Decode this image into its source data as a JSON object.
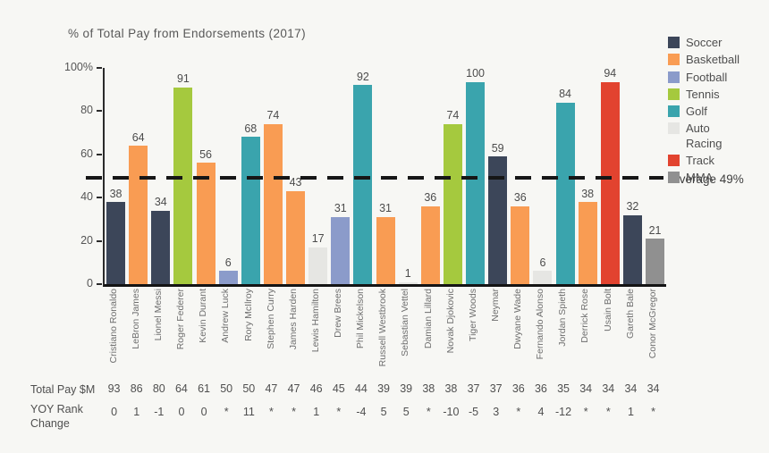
{
  "title": "% of Total Pay from Endorsements (2017)",
  "average_label": "Average 49%",
  "row_labels": {
    "total_pay": "Total Pay $M",
    "yoy": "YOY Rank\nChange"
  },
  "y_axis": {
    "ticks": [
      "100%",
      "80",
      "60",
      "40",
      "20",
      "0"
    ]
  },
  "legend": [
    {
      "label": "Soccer",
      "color": "#3c4659"
    },
    {
      "label": "Basketball",
      "color": "#f99c53"
    },
    {
      "label": "Football",
      "color": "#8b9bca"
    },
    {
      "label": "Tennis",
      "color": "#a5c93e"
    },
    {
      "label": "Golf",
      "color": "#3aa4ad"
    },
    {
      "label": "Auto\nRacing",
      "color": "#e6e6e3"
    },
    {
      "label": "Track",
      "color": "#e2432f"
    },
    {
      "label": "MMA",
      "color": "#909090"
    }
  ],
  "chart_data": {
    "type": "bar",
    "title": "% of Total Pay from Endorsements (2017)",
    "ylabel": "% of Total Pay from Endorsements",
    "ylim": [
      0,
      100
    ],
    "grid": false,
    "legend_position": "top-right",
    "average_line": 49,
    "categories": [
      "Cristiano Ronaldo",
      "LeBron James",
      "Lionel Messi",
      "Roger Federer",
      "Kevin Durant",
      "Andrew Luck",
      "Rory McIlroy",
      "Stephen Curry",
      "James Harden",
      "Lewis Hamilton",
      "Drew Brees",
      "Phil Mickelson",
      "Russell Westbrook",
      "Sebastian Vettel",
      "Damian Lillard",
      "Novak Djokovic",
      "Tiger Woods",
      "Neymar",
      "Dwyane Wade",
      "Fernando Alonso",
      "Jordan Spieth",
      "Derrick Rose",
      "Usain Bolt",
      "Gareth Bale",
      "Conor McGregor"
    ],
    "sports": [
      "Soccer",
      "Basketball",
      "Soccer",
      "Tennis",
      "Basketball",
      "Football",
      "Golf",
      "Basketball",
      "Basketball",
      "Auto Racing",
      "Football",
      "Golf",
      "Basketball",
      "Auto Racing",
      "Basketball",
      "Tennis",
      "Golf",
      "Soccer",
      "Basketball",
      "Auto Racing",
      "Golf",
      "Basketball",
      "Track",
      "Soccer",
      "MMA"
    ],
    "colors": {
      "Soccer": "#3c4659",
      "Basketball": "#f99c53",
      "Football": "#8b9bca",
      "Tennis": "#a5c93e",
      "Golf": "#3aa4ad",
      "Auto Racing": "#e6e6e3",
      "Track": "#e2432f",
      "MMA": "#909090"
    },
    "series": [
      {
        "name": "% of Total Pay from Endorsements (2017)",
        "values": [
          38,
          64,
          34,
          91,
          56,
          6,
          68,
          74,
          43,
          17,
          31,
          92,
          31,
          1,
          36,
          74,
          100,
          59,
          36,
          6,
          84,
          38,
          94,
          32,
          21
        ]
      }
    ],
    "rows": {
      "total_pay": [
        93,
        86,
        80,
        64,
        61,
        50,
        50,
        47,
        47,
        46,
        45,
        44,
        39,
        39,
        38,
        38,
        37,
        37,
        36,
        36,
        35,
        34,
        34,
        34,
        34
      ],
      "yoy_rank_change": [
        "0",
        "1",
        "-1",
        "0",
        "0",
        "*",
        "11",
        "*",
        "*",
        "1",
        "*",
        "-4",
        "5",
        "5",
        "*",
        "-10",
        "-5",
        "3",
        "*",
        "4",
        "-12",
        "*",
        "*",
        "1",
        "*"
      ]
    }
  }
}
